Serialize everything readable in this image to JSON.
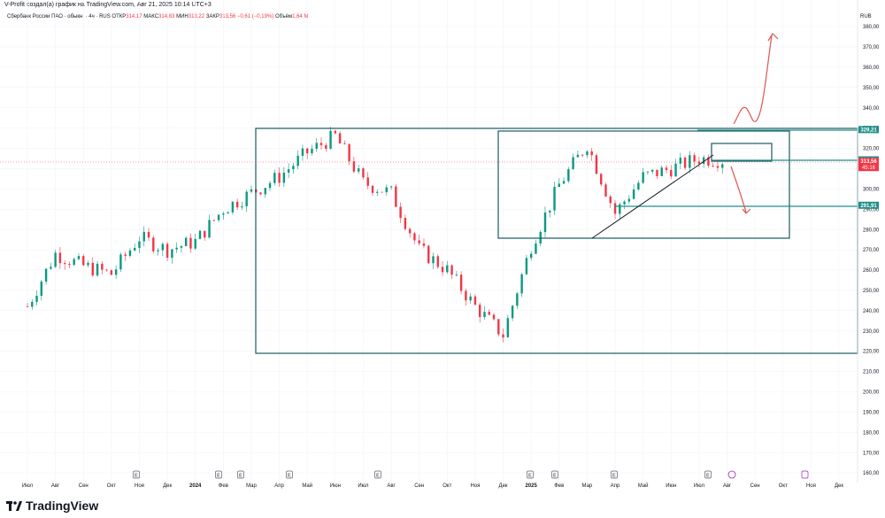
{
  "attribution": "V-Profit создал(а) график на TradingView.com, Авг 21, 2025 10:14 UTC+3",
  "legend": {
    "symbol": "Сбербанк России ПАО · обыкн. · 4ч · RUS",
    "open_label": "ОТКР",
    "open": "314,17",
    "high_label": "МАКС",
    "high": "314,83",
    "low_label": "МИН",
    "low": "313,22",
    "close_label": "ЗАКР",
    "close": "313,56",
    "change": "−0,61 (−0,19%)",
    "volume_label": "Объём",
    "volume": "1,64 M"
  },
  "currency": "RUB",
  "brand": "TradingView",
  "colors": {
    "up": "#089981",
    "down": "#f23645",
    "box": "#1a5a60",
    "level": "#1f8f8a",
    "arrow": "#e05555",
    "grid": "#f0f3fa"
  },
  "chart_data": {
    "type": "line",
    "title": "",
    "xlabel": "",
    "ylabel": "",
    "ylim": [
      160,
      380
    ],
    "y_ticks": [
      "380,00",
      "370,00",
      "360,00",
      "350,00",
      "340,00",
      "330,00",
      "320,00",
      "310,00",
      "300,00",
      "290,00",
      "280,00",
      "270,00",
      "260,00",
      "250,00",
      "240,00",
      "230,00",
      "220,00",
      "210,00",
      "200,00",
      "190,00",
      "180,00",
      "170,00",
      "160,00"
    ],
    "x_ticks": [
      "Июл",
      "Авг",
      "Сен",
      "Окт",
      "Ноя",
      "Дек",
      "2024",
      "Фев",
      "Мар",
      "Апр",
      "Май",
      "Июн",
      "Июл",
      "Авг",
      "Сен",
      "Окт",
      "Ноя",
      "Дек",
      "2025",
      "Фев",
      "Мар",
      "Апр",
      "Май",
      "Июн",
      "Июл",
      "Авг",
      "Сен",
      "Окт",
      "Ноя",
      "Дек"
    ],
    "series": [
      {
        "x": [
          "2023-07",
          "2023-08",
          "2023-09",
          "2023-10",
          "2023-11",
          "2023-12",
          "2024-01",
          "2024-02",
          "2024-03",
          "2024-04",
          "2024-05",
          "2024-06",
          "2024-07",
          "2024-08",
          "2024-09",
          "2024-10",
          "2024-11",
          "2024-12",
          "2025-01",
          "2025-02",
          "2025-03",
          "2025-04",
          "2025-05",
          "2025-06",
          "2025-07",
          "2025-08"
        ],
        "values": [
          242,
          268,
          262,
          258,
          276,
          270,
          274,
          290,
          298,
          306,
          318,
          326,
          303,
          298,
          270,
          260,
          242,
          228,
          272,
          302,
          322,
          288,
          306,
          310,
          315,
          314
        ]
      }
    ],
    "price_labels": [
      {
        "value": 329.21,
        "text": "329,21",
        "kind": "level"
      },
      {
        "value": 314.31,
        "text": "314,31",
        "kind": "level"
      },
      {
        "value": 313.56,
        "text": "313,56",
        "kind": "last"
      },
      {
        "value": 291.91,
        "text": "291,91",
        "kind": "level"
      }
    ],
    "last_label_countdown": "45:16",
    "event_markers": [
      "E",
      "E",
      "E",
      "E",
      "E",
      "E",
      "E",
      "E",
      "E"
    ]
  }
}
